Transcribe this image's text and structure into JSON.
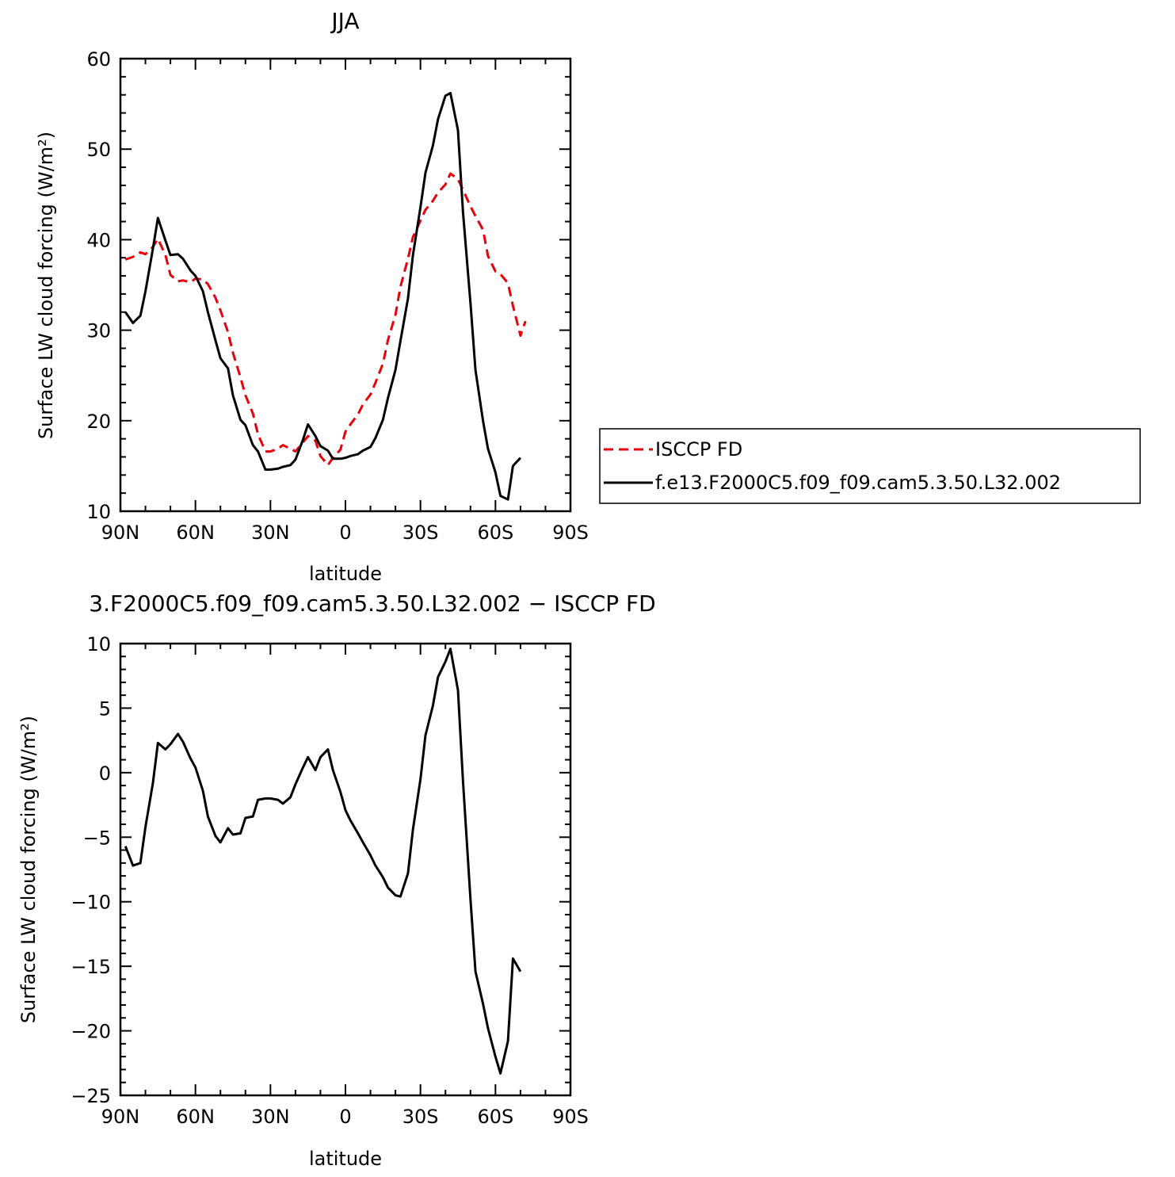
{
  "chart_data": [
    {
      "type": "line",
      "title": "JJA",
      "xlabel": "latitude",
      "ylabel": "Surface LW cloud forcing (W/m²)",
      "xlim": [
        -90,
        90
      ],
      "ylim": [
        10,
        60
      ],
      "x_ticks": [
        -90,
        -60,
        -30,
        0,
        30,
        60,
        90
      ],
      "x_tick_labels": [
        "90N",
        "60N",
        "30N",
        "0",
        "30S",
        "60S",
        "90S"
      ],
      "y_ticks": [
        10,
        20,
        30,
        40,
        50,
        60
      ],
      "y_tick_labels": [
        "10",
        "20",
        "30",
        "40",
        "50",
        "60"
      ],
      "legend_placement": "right",
      "series": [
        {
          "name": "ISCCP FD",
          "color": "#e8000b",
          "dash": "dashed",
          "x": [
            -88,
            -85,
            -82,
            -80,
            -77,
            -75,
            -72,
            -70,
            -67,
            -65,
            -62,
            -60,
            -57,
            -55,
            -52,
            -50,
            -47,
            -45,
            -42,
            -40,
            -37,
            -35,
            -32,
            -30,
            -27,
            -25,
            -22,
            -20,
            -17,
            -15,
            -12,
            -10,
            -7,
            -5,
            -2,
            0,
            2,
            5,
            7,
            10,
            12,
            15,
            17,
            20,
            22,
            25,
            27,
            30,
            32,
            35,
            37,
            40,
            42,
            45,
            47,
            50,
            52,
            55,
            57,
            60,
            62,
            65,
            67,
            70,
            72,
            75,
            77,
            80,
            82,
            85,
            88
          ],
          "y": [
            37.8,
            38.1,
            38.6,
            38.4,
            39.2,
            40.1,
            38.3,
            36.1,
            35.4,
            35.5,
            35.3,
            35.7,
            35.6,
            35.1,
            33.6,
            32.2,
            29.8,
            27.5,
            24.8,
            22.8,
            20.8,
            18.5,
            16.6,
            16.6,
            16.9,
            17.3,
            16.9,
            16.6,
            17.6,
            18.3,
            17.8,
            16.1,
            15.1,
            15.9,
            16.8,
            18.8,
            19.6,
            20.7,
            21.8,
            22.9,
            24.2,
            26.3,
            28.9,
            31.7,
            34.8,
            37.9,
            40.3,
            42.1,
            43.3,
            44.3,
            45.2,
            46.1,
            47.3,
            46.7,
            45.5,
            43.7,
            42.6,
            41.1,
            38.2,
            36.5,
            36.2,
            35.2,
            32.7,
            29.4,
            31.0,
            null,
            null,
            null,
            null,
            null,
            null
          ]
        },
        {
          "name": "f.e13.F2000C5.f09_f09.cam5.3.50.L32.002",
          "color": "#000000",
          "dash": "solid",
          "x": [
            -88,
            -85,
            -82,
            -80,
            -77,
            -75,
            -72,
            -70,
            -67,
            -65,
            -62,
            -60,
            -57,
            -55,
            -52,
            -50,
            -47,
            -45,
            -42,
            -40,
            -37,
            -35,
            -32,
            -30,
            -27,
            -25,
            -22,
            -20,
            -17,
            -15,
            -12,
            -10,
            -7,
            -5,
            -2,
            0,
            2,
            5,
            7,
            10,
            12,
            15,
            17,
            20,
            22,
            25,
            27,
            30,
            32,
            35,
            37,
            40,
            42,
            45,
            47,
            50,
            52,
            55,
            57,
            60,
            62,
            65,
            67,
            70,
            72,
            75,
            77,
            80,
            82,
            85,
            88
          ],
          "y": [
            32.0,
            30.8,
            31.6,
            34.3,
            39.0,
            42.4,
            39.9,
            38.3,
            38.4,
            37.9,
            36.6,
            36.0,
            34.3,
            32.0,
            28.9,
            26.9,
            25.8,
            22.8,
            20.1,
            19.5,
            17.3,
            16.6,
            14.6,
            14.6,
            14.7,
            14.9,
            15.1,
            15.7,
            17.9,
            19.6,
            18.3,
            17.2,
            16.7,
            15.8,
            15.8,
            15.9,
            16.1,
            16.3,
            16.7,
            17.1,
            18.1,
            20.1,
            22.5,
            25.6,
            28.8,
            33.5,
            38.3,
            43.6,
            47.4,
            50.4,
            53.3,
            55.9,
            56.2,
            52.1,
            43.1,
            33.0,
            25.6,
            20.0,
            16.9,
            14.3,
            11.7,
            11.3,
            15.0,
            15.9,
            null,
            null,
            null,
            null,
            null,
            null,
            null
          ]
        }
      ]
    },
    {
      "type": "line",
      "title": "3.F2000C5.f09_f09.cam5.3.50.L32.002 − ISCCP FD",
      "xlabel": "latitude",
      "ylabel": "Surface LW cloud forcing (W/m²)",
      "xlim": [
        -90,
        90
      ],
      "ylim": [
        -25,
        10
      ],
      "x_ticks": [
        -90,
        -60,
        -30,
        0,
        30,
        60,
        90
      ],
      "x_tick_labels": [
        "90N",
        "60N",
        "30N",
        "0",
        "30S",
        "60S",
        "90S"
      ],
      "y_ticks": [
        -25,
        -20,
        -15,
        -10,
        -5,
        0,
        5,
        10
      ],
      "y_tick_labels": [
        "−25",
        "−20",
        "−15",
        "−10",
        "−5",
        "0",
        "5",
        "10"
      ],
      "series": [
        {
          "color": "#000000",
          "dash": "solid",
          "x": [
            -88,
            -85,
            -82,
            -80,
            -77,
            -75,
            -72,
            -70,
            -67,
            -65,
            -62,
            -60,
            -57,
            -55,
            -52,
            -50,
            -47,
            -45,
            -42,
            -40,
            -37,
            -35,
            -32,
            -30,
            -27,
            -25,
            -22,
            -20,
            -17,
            -15,
            -12,
            -10,
            -7,
            -5,
            -2,
            0,
            2,
            5,
            7,
            10,
            12,
            15,
            17,
            20,
            22,
            25,
            27,
            30,
            32,
            35,
            37,
            40,
            42,
            45,
            47,
            50,
            52,
            55,
            57,
            60,
            62,
            65,
            67,
            70,
            72,
            75,
            77,
            80,
            82,
            85,
            88
          ],
          "y": [
            -5.7,
            -7.2,
            -7.0,
            -4.2,
            -0.8,
            2.3,
            1.8,
            2.2,
            3.0,
            2.4,
            1.1,
            0.4,
            -1.4,
            -3.4,
            -4.9,
            -5.4,
            -4.3,
            -4.8,
            -4.7,
            -3.5,
            -3.4,
            -2.1,
            -2.0,
            -2.0,
            -2.1,
            -2.4,
            -1.9,
            -0.9,
            0.4,
            1.2,
            0.2,
            1.2,
            1.8,
            0.2,
            -1.5,
            -2.9,
            -3.7,
            -4.7,
            -5.4,
            -6.4,
            -7.2,
            -8.1,
            -8.9,
            -9.5,
            -9.6,
            -7.8,
            -4.4,
            -0.5,
            2.9,
            5.2,
            7.4,
            8.6,
            9.6,
            6.4,
            -0.6,
            -9.8,
            -15.4,
            -17.9,
            -19.8,
            -22.0,
            -23.3,
            -20.8,
            -14.4,
            -15.4,
            null,
            null,
            null,
            null,
            null,
            null,
            null
          ]
        }
      ]
    }
  ]
}
